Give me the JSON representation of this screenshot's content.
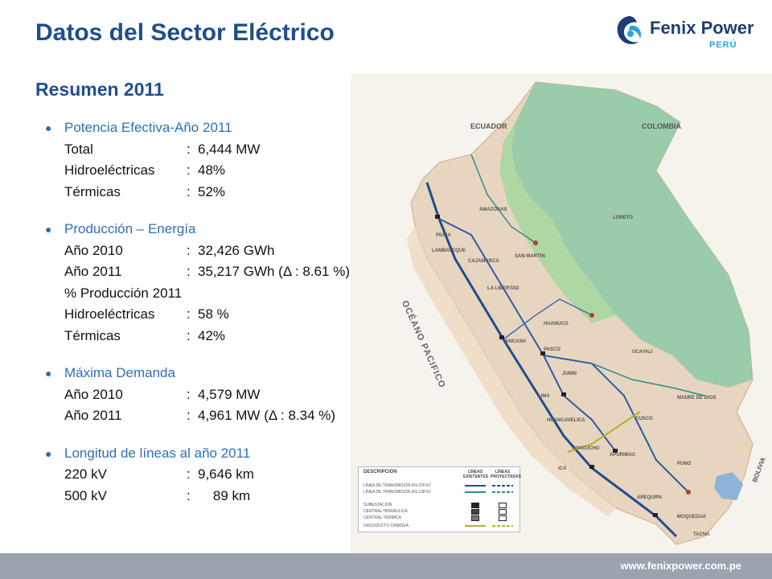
{
  "slide": {
    "title": "Datos del Sector Eléctrico",
    "subtitle": "Resumen 2011",
    "logo": {
      "name": "Fenix Power",
      "country": "PERÚ",
      "icon": "fenix-swirl-icon",
      "colors": [
        "#1f3f73",
        "#2aa3d8"
      ]
    },
    "footer_url": "www.fenixpower.com.pe",
    "accent_color": "#1f4e8c",
    "bullet_color": "#2f6fb5"
  },
  "sections": [
    {
      "heading": "Potencia Efectiva-Año 2011",
      "rows": [
        {
          "label": "Total",
          "sep": ":",
          "value": "6,444 MW"
        },
        {
          "label": "Hidroeléctricas",
          "sep": ":",
          "value": "48%"
        },
        {
          "label": "Térmicas",
          "sep": ":",
          "value": "52%"
        }
      ]
    },
    {
      "heading": "Producción – Energía",
      "rows": [
        {
          "label": "Año 2010",
          "sep": ":",
          "value": "32,426 GWh"
        },
        {
          "label": "Año 2011",
          "sep": ":",
          "value": "35,217 GWh  (Δ : 8.61 %)"
        },
        {
          "text": "% Producción 2011"
        },
        {
          "label": "Hidroeléctricas",
          "sep": ":",
          "value": "58 %"
        },
        {
          "label": "Térmicas",
          "sep": ":",
          "value": "42%"
        }
      ]
    },
    {
      "heading": "Máxima Demanda",
      "rows": [
        {
          "label": "Año  2010",
          "sep": ":",
          "value": "4,579 MW"
        },
        {
          "label": "Año  2011",
          "sep": ":",
          "value": "4,961 MW (Δ : 8.34 %)"
        }
      ]
    },
    {
      "heading": "Longitud de líneas al  año 2011",
      "rows": [
        {
          "label": "220 kV",
          "sep": ":",
          "value": "9,646 km"
        },
        {
          "label": "500 kV",
          "sep": ":",
          "value": "    89 km"
        }
      ]
    }
  ],
  "map": {
    "countries": [
      "ECUADOR",
      "COLOMBIA",
      "BOLIVIA"
    ],
    "ocean": "OCÉANO PACIFICO",
    "regions": [
      "LORETO",
      "UCAYALI",
      "MADRE DE DIOS",
      "SAN MARTIN",
      "AMAZONAS",
      "PIURA",
      "LAMBAYEQUE",
      "CAJAMARCA",
      "LA LIBERTAD",
      "HUANUCO",
      "PASCO",
      "JUNIN",
      "LIMA",
      "HUANCAVELICA",
      "AYACUCHO",
      "CUSCO",
      "APURIMAC",
      "PUNO",
      "AREQUIPA",
      "ICA",
      "MOQUEGUA",
      "TACNA",
      "ANCASH"
    ],
    "legend": {
      "title": "DESCRIPCIÓN",
      "col_existing": "LÍNEAS EXISTENTES",
      "col_projected": "LÍNEAS PROYECTADAS",
      "items": [
        "LÍNEA DE TRANSMISIÓN EN 220 kV",
        "LÍNEA DE TRANSMISIÓN EN 138 kV",
        "SUBESTACIÓN",
        "CENTRAL HIDRÁULICA",
        "CENTRAL TÉRMICA",
        "GASODUCTO CAMISEA"
      ]
    }
  }
}
